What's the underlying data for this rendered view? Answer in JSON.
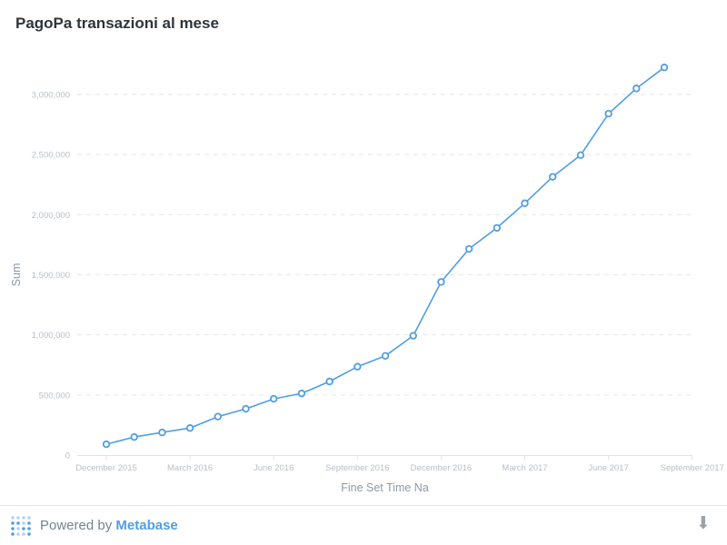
{
  "card": {
    "title": "PagoPa transazioni al mese"
  },
  "chart_data": {
    "type": "line",
    "title": "PagoPa transazioni al mese",
    "xlabel": "Fine Set Time Na",
    "ylabel": "Sum",
    "x": [
      "2015-12",
      "2016-01",
      "2016-02",
      "2016-03",
      "2016-04",
      "2016-05",
      "2016-06",
      "2016-07",
      "2016-08",
      "2016-09",
      "2016-10",
      "2016-11",
      "2016-12",
      "2017-01",
      "2017-02",
      "2017-03",
      "2017-04",
      "2017-05",
      "2017-06",
      "2017-07",
      "2017-08"
    ],
    "series": [
      {
        "values": [
          90000,
          150000,
          188000,
          225000,
          320000,
          385000,
          468000,
          513000,
          612000,
          735000,
          825000,
          993000,
          1440000,
          1715000,
          1890000,
          2095000,
          2315000,
          2495000,
          2840000,
          3050000,
          3225000
        ]
      }
    ],
    "x_ticks": [
      "December 2015",
      "March 2016",
      "June 2016",
      "September 2016",
      "December 2016",
      "March 2017",
      "June 2017",
      "September 2017"
    ],
    "y_ticks": [
      "0",
      "500,000",
      "1,000,000",
      "1,500,000",
      "2,000,000",
      "2,500,000",
      "3,000,000"
    ],
    "ylim": [
      0,
      3000000
    ],
    "grid": true,
    "colors": {
      "line": "#509ee3",
      "grid": "#e2e6ea",
      "axis": "#dfe3e7",
      "tick": "#b8c0c8",
      "label": "#8c9aa6"
    }
  },
  "footer": {
    "powered_by": "Powered by ",
    "brand": "Metabase",
    "download_icon": "⬇"
  }
}
